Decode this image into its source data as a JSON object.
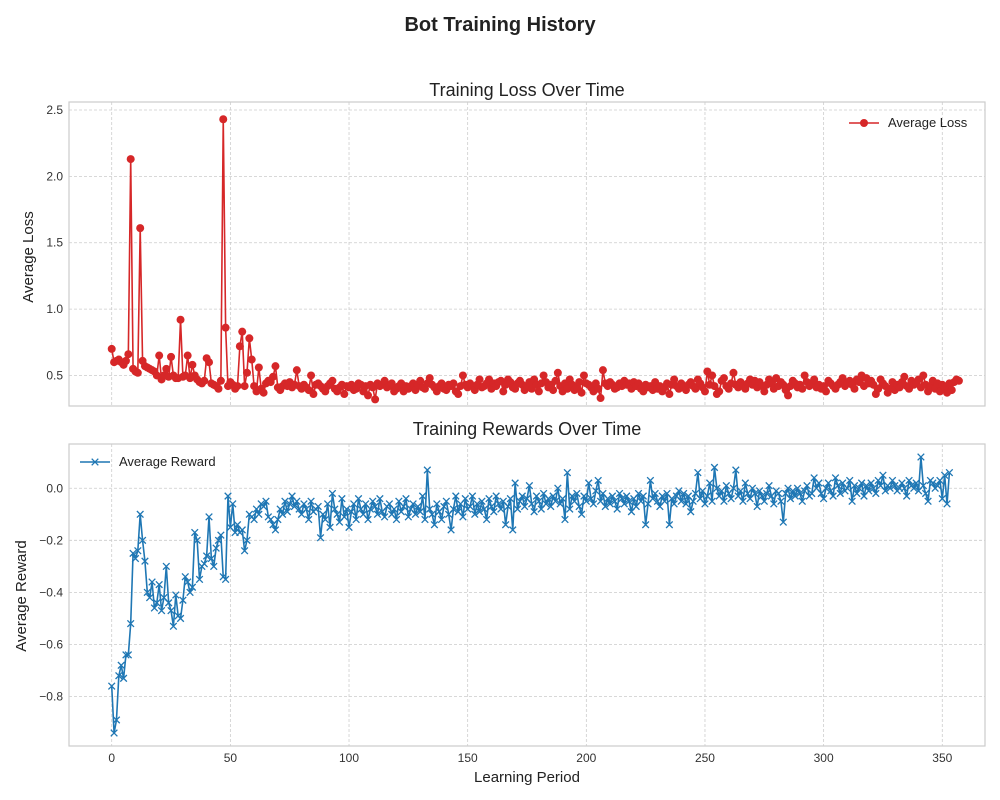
{
  "figure": {
    "title": "Bot Training History"
  },
  "chart_data": [
    {
      "type": "line",
      "title": "Training Loss Over Time",
      "xlabel": "",
      "ylabel": "Average Loss",
      "xlim": [
        -18,
        368
      ],
      "ylim": [
        0.27,
        2.56
      ],
      "xticks": [
        0,
        50,
        100,
        150,
        200,
        250,
        300,
        350
      ],
      "xtick_labels": [],
      "yticks": [
        0.5,
        1.0,
        1.5,
        2.0,
        2.5
      ],
      "ytick_labels": [
        "0.5",
        "1.0",
        "1.5",
        "2.0",
        "2.5"
      ],
      "grid": true,
      "legend_position": "top-right",
      "series": [
        {
          "name": "Average Loss",
          "color": "#d62728",
          "marker": "circle",
          "x_start": 0,
          "x_step": 1,
          "values": [
            0.7,
            0.6,
            0.61,
            0.62,
            0.6,
            0.58,
            0.61,
            0.66,
            2.13,
            0.55,
            0.53,
            0.52,
            1.61,
            0.61,
            0.57,
            0.56,
            0.55,
            0.54,
            0.53,
            0.5,
            0.65,
            0.47,
            0.5,
            0.55,
            0.49,
            0.64,
            0.5,
            0.48,
            0.48,
            0.92,
            0.49,
            0.5,
            0.65,
            0.48,
            0.58,
            0.5,
            0.47,
            0.45,
            0.44,
            0.46,
            0.63,
            0.6,
            0.44,
            0.43,
            0.42,
            0.4,
            0.46,
            2.43,
            0.86,
            0.42,
            0.45,
            0.43,
            0.4,
            0.42,
            0.72,
            0.83,
            0.42,
            0.52,
            0.78,
            0.62,
            0.42,
            0.38,
            0.56,
            0.4,
            0.37,
            0.44,
            0.46,
            0.45,
            0.49,
            0.57,
            0.41,
            0.39,
            0.42,
            0.44,
            0.42,
            0.45,
            0.41,
            0.43,
            0.54,
            0.42,
            0.4,
            0.43,
            0.41,
            0.39,
            0.5,
            0.36,
            0.43,
            0.44,
            0.42,
            0.4,
            0.38,
            0.42,
            0.44,
            0.46,
            0.4,
            0.38,
            0.41,
            0.43,
            0.36,
            0.42,
            0.41,
            0.43,
            0.39,
            0.4,
            0.44,
            0.43,
            0.38,
            0.42,
            0.35,
            0.43,
            0.41,
            0.32,
            0.44,
            0.42,
            0.43,
            0.46,
            0.41,
            0.42,
            0.44,
            0.38,
            0.4,
            0.42,
            0.44,
            0.38,
            0.42,
            0.4,
            0.42,
            0.44,
            0.39,
            0.43,
            0.46,
            0.41,
            0.4,
            0.44,
            0.48,
            0.43,
            0.41,
            0.38,
            0.42,
            0.44,
            0.4,
            0.39,
            0.43,
            0.42,
            0.44,
            0.38,
            0.36,
            0.42,
            0.5,
            0.43,
            0.41,
            0.44,
            0.42,
            0.39,
            0.43,
            0.47,
            0.41,
            0.42,
            0.44,
            0.47,
            0.4,
            0.44,
            0.42,
            0.45,
            0.46,
            0.38,
            0.43,
            0.47,
            0.45,
            0.41,
            0.4,
            0.44,
            0.46,
            0.43,
            0.39,
            0.42,
            0.45,
            0.4,
            0.47,
            0.43,
            0.38,
            0.44,
            0.5,
            0.45,
            0.41,
            0.43,
            0.39,
            0.46,
            0.52,
            0.42,
            0.38,
            0.44,
            0.4,
            0.47,
            0.43,
            0.39,
            0.41,
            0.45,
            0.37,
            0.5,
            0.44,
            0.43,
            0.41,
            0.38,
            0.44,
            0.4,
            0.33,
            0.54,
            0.44,
            0.42,
            0.45,
            0.43,
            0.4,
            0.41,
            0.44,
            0.42,
            0.46,
            0.43,
            0.44,
            0.4,
            0.45,
            0.42,
            0.44,
            0.4,
            0.38,
            0.43,
            0.41,
            0.42,
            0.39,
            0.45,
            0.4,
            0.42,
            0.38,
            0.41,
            0.44,
            0.36,
            0.43,
            0.47,
            0.42,
            0.4,
            0.44,
            0.41,
            0.39,
            0.43,
            0.45,
            0.42,
            0.4,
            0.47,
            0.44,
            0.41,
            0.38,
            0.53,
            0.43,
            0.5,
            0.42,
            0.36,
            0.38,
            0.46,
            0.48,
            0.42,
            0.4,
            0.44,
            0.52,
            0.43,
            0.41,
            0.45,
            0.42,
            0.4,
            0.44,
            0.47,
            0.43,
            0.46,
            0.41,
            0.45,
            0.42,
            0.38,
            0.43,
            0.47,
            0.44,
            0.4,
            0.48,
            0.42,
            0.45,
            0.43,
            0.39,
            0.35,
            0.42,
            0.46,
            0.44,
            0.41,
            0.43,
            0.4,
            0.5,
            0.45,
            0.42,
            0.44,
            0.47,
            0.41,
            0.43,
            0.4,
            0.42,
            0.38,
            0.46,
            0.44,
            0.42,
            0.4,
            0.43,
            0.45,
            0.48,
            0.42,
            0.44,
            0.46,
            0.43,
            0.4,
            0.47,
            0.45,
            0.5,
            0.42,
            0.48,
            0.44,
            0.46,
            0.43,
            0.36,
            0.4,
            0.47,
            0.44,
            0.42,
            0.37,
            0.4,
            0.45,
            0.39,
            0.43,
            0.41,
            0.45,
            0.49,
            0.42,
            0.4,
            0.46,
            0.43,
            0.44,
            0.47,
            0.41,
            0.5,
            0.43,
            0.38,
            0.42,
            0.46,
            0.4,
            0.44,
            0.38,
            0.43,
            0.41,
            0.37,
            0.44,
            0.39,
            0.45,
            0.47,
            0.46
          ]
        }
      ]
    },
    {
      "type": "line",
      "title": "Training Rewards Over Time",
      "xlabel": "Learning Period",
      "ylabel": "Average Reward",
      "xlim": [
        -18,
        368
      ],
      "ylim": [
        -0.99,
        0.17
      ],
      "xticks": [
        0,
        50,
        100,
        150,
        200,
        250,
        300,
        350
      ],
      "xtick_labels": [
        "0",
        "50",
        "100",
        "150",
        "200",
        "250",
        "300",
        "350"
      ],
      "yticks": [
        -0.8,
        -0.6,
        -0.4,
        -0.2,
        0.0
      ],
      "ytick_labels": [
        "−0.8",
        "−0.6",
        "−0.4",
        "−0.2",
        "0.0"
      ],
      "grid": true,
      "legend_position": "top-left",
      "series": [
        {
          "name": "Average Reward",
          "color": "#1f77b4",
          "marker": "x",
          "x_start": 0,
          "x_step": 1,
          "values": [
            -0.76,
            -0.94,
            -0.89,
            -0.72,
            -0.68,
            -0.73,
            -0.64,
            -0.64,
            -0.52,
            -0.25,
            -0.27,
            -0.24,
            -0.1,
            -0.2,
            -0.28,
            -0.4,
            -0.42,
            -0.36,
            -0.46,
            -0.44,
            -0.37,
            -0.47,
            -0.42,
            -0.3,
            -0.44,
            -0.47,
            -0.53,
            -0.41,
            -0.49,
            -0.5,
            -0.43,
            -0.34,
            -0.36,
            -0.4,
            -0.38,
            -0.17,
            -0.2,
            -0.35,
            -0.3,
            -0.29,
            -0.26,
            -0.11,
            -0.27,
            -0.3,
            -0.23,
            -0.2,
            -0.18,
            -0.34,
            -0.35,
            -0.03,
            -0.15,
            -0.06,
            -0.17,
            -0.14,
            -0.17,
            -0.16,
            -0.24,
            -0.2,
            -0.1,
            -0.11,
            -0.12,
            -0.08,
            -0.1,
            -0.06,
            -0.07,
            -0.05,
            -0.11,
            -0.12,
            -0.14,
            -0.16,
            -0.12,
            -0.08,
            -0.1,
            -0.05,
            -0.09,
            -0.06,
            -0.03,
            -0.07,
            -0.05,
            -0.08,
            -0.1,
            -0.06,
            -0.08,
            -0.12,
            -0.05,
            -0.09,
            -0.08,
            -0.07,
            -0.19,
            -0.1,
            -0.12,
            -0.06,
            -0.15,
            -0.02,
            -0.08,
            -0.1,
            -0.13,
            -0.04,
            -0.11,
            -0.08,
            -0.15,
            -0.09,
            -0.06,
            -0.12,
            -0.04,
            -0.08,
            -0.1,
            -0.06,
            -0.12,
            -0.08,
            -0.05,
            -0.07,
            -0.1,
            -0.04,
            -0.09,
            -0.11,
            -0.07,
            -0.06,
            -0.1,
            -0.08,
            -0.12,
            -0.05,
            -0.09,
            -0.07,
            -0.04,
            -0.11,
            -0.08,
            -0.06,
            -0.1,
            -0.07,
            -0.09,
            -0.03,
            -0.12,
            0.07,
            -0.08,
            -0.1,
            -0.14,
            -0.06,
            -0.09,
            -0.12,
            -0.07,
            -0.05,
            -0.1,
            -0.16,
            -0.08,
            -0.03,
            -0.09,
            -0.06,
            -0.11,
            -0.04,
            -0.08,
            -0.07,
            -0.03,
            -0.1,
            -0.06,
            -0.09,
            -0.05,
            -0.08,
            -0.12,
            -0.04,
            -0.07,
            -0.09,
            -0.03,
            -0.06,
            -0.08,
            -0.05,
            -0.14,
            -0.07,
            -0.04,
            -0.16,
            0.02,
            -0.08,
            -0.05,
            -0.03,
            -0.07,
            -0.04,
            0.01,
            -0.06,
            -0.09,
            -0.03,
            -0.05,
            -0.08,
            -0.02,
            -0.06,
            -0.04,
            -0.07,
            -0.03,
            -0.05,
            0.0,
            -0.06,
            -0.04,
            -0.12,
            0.06,
            -0.08,
            -0.03,
            -0.05,
            -0.02,
            -0.07,
            -0.1,
            -0.03,
            -0.05,
            0.02,
            -0.04,
            -0.06,
            -0.01,
            0.03,
            -0.05,
            -0.02,
            -0.07,
            -0.04,
            -0.06,
            -0.03,
            -0.05,
            -0.08,
            -0.02,
            -0.04,
            -0.06,
            -0.03,
            -0.05,
            -0.09,
            -0.04,
            -0.07,
            -0.02,
            -0.05,
            -0.03,
            -0.14,
            -0.06,
            0.03,
            -0.04,
            -0.02,
            -0.05,
            -0.07,
            -0.03,
            -0.05,
            -0.02,
            -0.14,
            -0.04,
            -0.06,
            -0.03,
            -0.01,
            -0.05,
            -0.02,
            -0.06,
            -0.03,
            -0.09,
            -0.05,
            -0.02,
            0.06,
            -0.04,
            -0.01,
            -0.06,
            -0.03,
            0.02,
            -0.05,
            0.08,
            0.0,
            -0.03,
            -0.01,
            -0.05,
            0.01,
            -0.02,
            -0.04,
            0.0,
            0.07,
            -0.03,
            -0.01,
            -0.05,
            0.02,
            -0.02,
            -0.04,
            0.0,
            -0.02,
            -0.07,
            -0.01,
            -0.03,
            -0.05,
            -0.02,
            0.01,
            -0.03,
            -0.06,
            -0.01,
            -0.02,
            -0.05,
            -0.13,
            -0.02,
            0.0,
            -0.04,
            -0.01,
            -0.03,
            0.0,
            -0.02,
            -0.05,
            -0.01,
            0.01,
            -0.03,
            -0.02,
            0.04,
            0.0,
            0.02,
            -0.02,
            -0.04,
            0.0,
            0.02,
            -0.01,
            -0.03,
            0.04,
            0.01,
            -0.02,
            0.02,
            -0.01,
            0.0,
            0.03,
            -0.05,
            0.01,
            -0.02,
            0.0,
            0.02,
            -0.03,
            0.01,
            -0.01,
            0.02,
            0.0,
            -0.02,
            0.03,
            0.01,
            0.05,
            -0.01,
            0.01,
            0.0,
            0.03,
            0.01,
            -0.01,
            0.0,
            0.02,
            0.0,
            -0.03,
            0.03,
            0.01,
            0.0,
            0.02,
            -0.01,
            0.12,
            0.01,
            -0.02,
            -0.05,
            0.03,
            0.02,
            0.0,
            0.01,
            0.03,
            -0.04,
            0.05,
            -0.06,
            0.06
          ]
        }
      ]
    }
  ]
}
